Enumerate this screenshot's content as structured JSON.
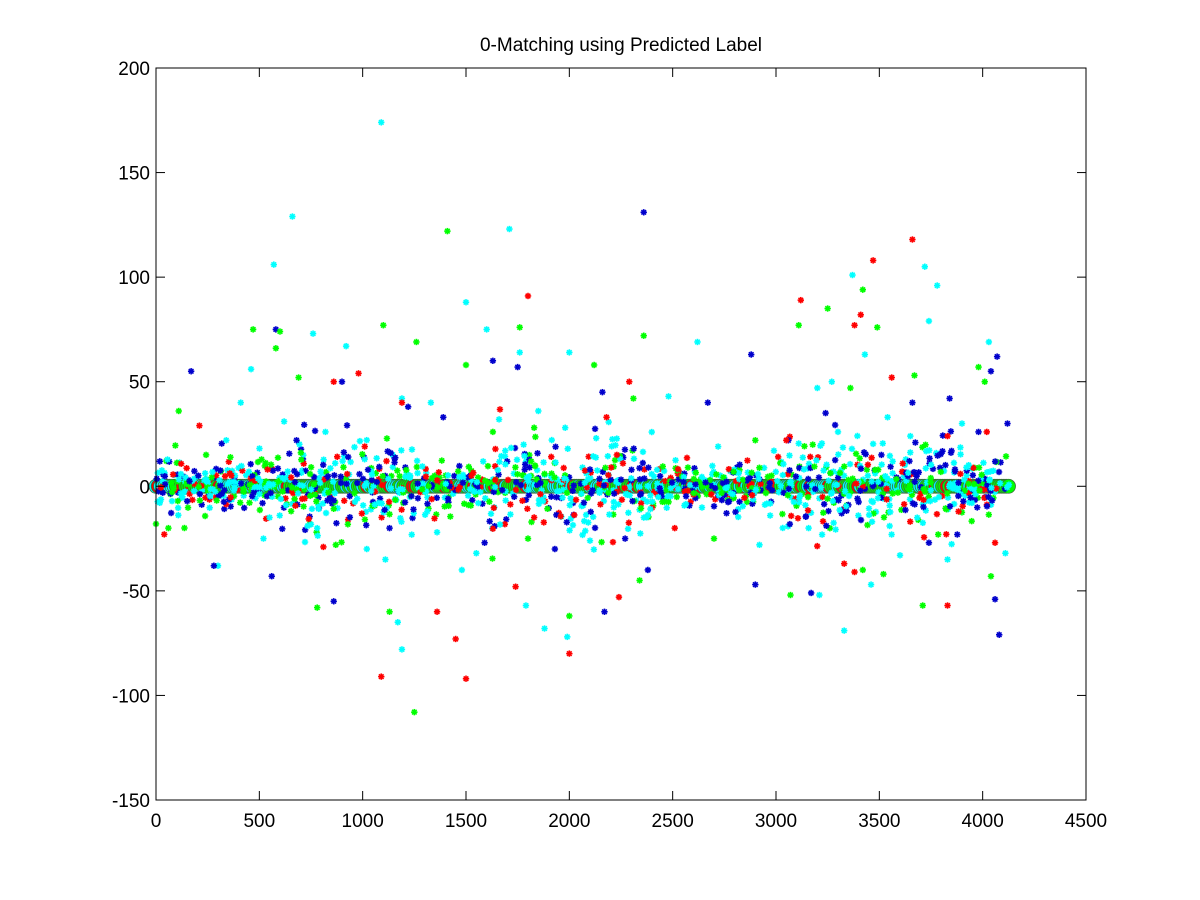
{
  "chart_data": {
    "type": "scatter",
    "title": "0-Matching using Predicted Label",
    "xlabel": "",
    "ylabel": "",
    "xlim": [
      0,
      4500
    ],
    "ylim": [
      -150,
      200
    ],
    "x_ticks": [
      0,
      500,
      1000,
      1500,
      2000,
      2500,
      3000,
      3500,
      4000,
      4500
    ],
    "y_ticks": [
      200,
      150,
      100,
      50,
      0,
      -50,
      -100,
      -150
    ],
    "grid": false,
    "legend": "none",
    "n_points_approx": 4130,
    "colors": {
      "blue": "#0000cc",
      "cyan": "#00ffff",
      "green": "#00ff00",
      "red": "#ff0000",
      "axes": "#000000"
    },
    "series": [
      {
        "marker": "asterisk",
        "color_key": "cyan",
        "points": [
          [
            1090,
            174
          ],
          [
            660,
            129
          ],
          [
            1710,
            123
          ],
          [
            570,
            106
          ],
          [
            3740,
            79
          ],
          [
            3780,
            96
          ],
          [
            3720,
            105
          ],
          [
            3370,
            101
          ],
          [
            1500,
            88
          ],
          [
            1760,
            64
          ],
          [
            2000,
            64
          ],
          [
            760,
            73
          ],
          [
            920,
            67
          ],
          [
            1600,
            75
          ],
          [
            2620,
            69
          ],
          [
            4030,
            69
          ],
          [
            1330,
            40
          ],
          [
            460,
            56
          ],
          [
            410,
            40
          ],
          [
            2480,
            43
          ],
          [
            1850,
            36
          ],
          [
            3270,
            50
          ],
          [
            3430,
            63
          ],
          [
            3200,
            47
          ],
          [
            3540,
            33
          ],
          [
            620,
            31
          ],
          [
            1190,
            42
          ],
          [
            1980,
            28
          ],
          [
            3300,
            26
          ],
          [
            820,
            26
          ],
          [
            2130,
            23
          ],
          [
            3650,
            24
          ],
          [
            3900,
            30
          ],
          [
            1660,
            32
          ],
          [
            1690,
            17
          ],
          [
            2720,
            19
          ],
          [
            340,
            22
          ],
          [
            2990,
            17
          ],
          [
            1110,
            -35
          ],
          [
            1170,
            -65
          ],
          [
            1190,
            -78
          ],
          [
            1480,
            -40
          ],
          [
            1790,
            -57
          ],
          [
            1880,
            -68
          ],
          [
            1990,
            -72
          ],
          [
            3330,
            -69
          ],
          [
            3210,
            -52
          ],
          [
            3460,
            -47
          ],
          [
            2920,
            -28
          ],
          [
            2100,
            -26
          ],
          [
            1550,
            -32
          ],
          [
            1020,
            -30
          ],
          [
            520,
            -25
          ],
          [
            300,
            -38
          ],
          [
            3600,
            -33
          ],
          [
            3830,
            -35
          ],
          [
            4110,
            -32
          ],
          [
            780,
            -20
          ],
          [
            1360,
            -22
          ]
        ]
      },
      {
        "marker": "asterisk",
        "color_key": "blue",
        "points": [
          [
            2360,
            131
          ],
          [
            170,
            55
          ],
          [
            580,
            75
          ],
          [
            900,
            50
          ],
          [
            1630,
            60
          ],
          [
            1750,
            57
          ],
          [
            2880,
            63
          ],
          [
            3240,
            35
          ],
          [
            3660,
            40
          ],
          [
            3840,
            42
          ],
          [
            4070,
            62
          ],
          [
            4040,
            55
          ],
          [
            680,
            22
          ],
          [
            930,
            14
          ],
          [
            1220,
            38
          ],
          [
            1390,
            33
          ],
          [
            2160,
            45
          ],
          [
            2670,
            40
          ],
          [
            3060,
            22
          ],
          [
            3510,
            15
          ],
          [
            3980,
            26
          ],
          [
            4120,
            30
          ],
          [
            560,
            -43
          ],
          [
            860,
            -55
          ],
          [
            280,
            -38
          ],
          [
            2170,
            -60
          ],
          [
            2380,
            -40
          ],
          [
            2900,
            -47
          ],
          [
            3170,
            -51
          ],
          [
            4060,
            -54
          ],
          [
            4080,
            -71
          ],
          [
            1930,
            -30
          ],
          [
            1590,
            -27
          ],
          [
            1130,
            -20
          ],
          [
            3740,
            -27
          ],
          [
            2270,
            -25
          ]
        ]
      },
      {
        "marker": "asterisk",
        "color_key": "green",
        "points": [
          [
            1410,
            122
          ],
          [
            1100,
            77
          ],
          [
            470,
            75
          ],
          [
            600,
            74
          ],
          [
            2360,
            72
          ],
          [
            3110,
            77
          ],
          [
            3490,
            76
          ],
          [
            3420,
            94
          ],
          [
            3250,
            85
          ],
          [
            3980,
            57
          ],
          [
            1260,
            69
          ],
          [
            580,
            66
          ],
          [
            1500,
            58
          ],
          [
            2120,
            58
          ],
          [
            690,
            52
          ],
          [
            1760,
            76
          ],
          [
            3360,
            47
          ],
          [
            3670,
            53
          ],
          [
            110,
            36
          ],
          [
            2310,
            42
          ],
          [
            2900,
            22
          ],
          [
            4010,
            50
          ],
          [
            1630,
            26
          ],
          [
            780,
            -58
          ],
          [
            1130,
            -60
          ],
          [
            2000,
            -62
          ],
          [
            3070,
            -52
          ],
          [
            3420,
            -40
          ],
          [
            3520,
            -42
          ],
          [
            3710,
            -57
          ],
          [
            4040,
            -43
          ],
          [
            1250,
            -108
          ],
          [
            2340,
            -45
          ],
          [
            870,
            -28
          ],
          [
            1800,
            -25
          ],
          [
            2700,
            -25
          ],
          [
            0,
            -18
          ],
          [
            60,
            -20
          ]
        ]
      },
      {
        "marker": "asterisk",
        "color_key": "red",
        "points": [
          [
            3660,
            118
          ],
          [
            3470,
            108
          ],
          [
            1800,
            91
          ],
          [
            3120,
            89
          ],
          [
            3410,
            82
          ],
          [
            3380,
            77
          ],
          [
            980,
            54
          ],
          [
            860,
            50
          ],
          [
            1190,
            40
          ],
          [
            210,
            29
          ],
          [
            2180,
            33
          ],
          [
            2290,
            50
          ],
          [
            3050,
            22
          ],
          [
            3560,
            52
          ],
          [
            3830,
            24
          ],
          [
            4020,
            26
          ],
          [
            2230,
            15
          ],
          [
            1010,
            19
          ],
          [
            1090,
            -91
          ],
          [
            1500,
            -92
          ],
          [
            2000,
            -80
          ],
          [
            1450,
            -73
          ],
          [
            1360,
            -60
          ],
          [
            2240,
            -53
          ],
          [
            3830,
            -57
          ],
          [
            3330,
            -37
          ],
          [
            3380,
            -41
          ],
          [
            810,
            -29
          ],
          [
            1740,
            -48
          ],
          [
            4060,
            -27
          ],
          [
            40,
            -23
          ],
          [
            2510,
            -20
          ]
        ]
      }
    ],
    "baseline_markers": {
      "marker": "circle",
      "y": 0,
      "x_range": [
        0,
        4130
      ],
      "colors": [
        "green",
        "cyan",
        "red"
      ]
    }
  }
}
